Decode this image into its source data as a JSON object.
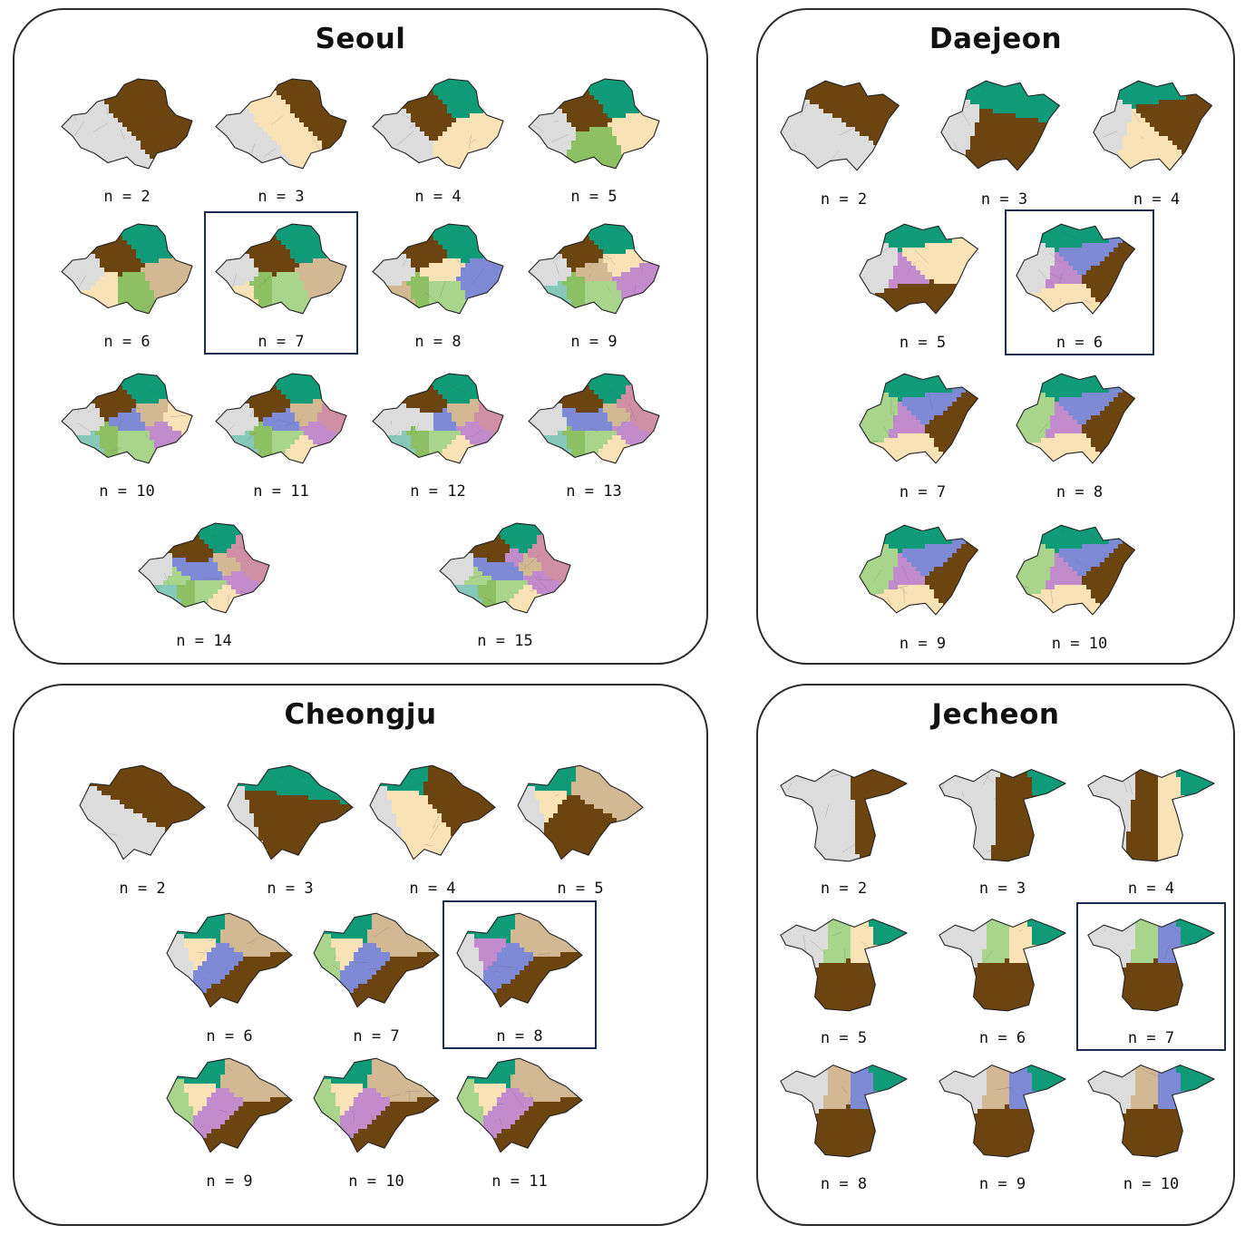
{
  "colors": {
    "gray": "#dcdcdc",
    "brown": "#6b4410",
    "teal": "#0f9a78",
    "beige": "#f8e2b6",
    "tan": "#d2b994",
    "lightgreen": "#a8d48c",
    "green": "#8cc063",
    "blue": "#7f8ad6",
    "purple": "#c28ccc",
    "pink": "#cf8fa4",
    "aqua": "#86c9bb",
    "highlight": "#1c2d52"
  },
  "panels": [
    {
      "id": "seoul",
      "title": "Seoul",
      "maps": [
        {
          "label": "n = 2",
          "regions": [
            "gray",
            "brown"
          ]
        },
        {
          "label": "n = 3",
          "regions": [
            "gray",
            "brown",
            "beige"
          ]
        },
        {
          "label": "n = 4",
          "regions": [
            "gray",
            "teal",
            "brown",
            "beige"
          ]
        },
        {
          "label": "n = 5",
          "regions": [
            "gray",
            "teal",
            "brown",
            "beige",
            "green"
          ]
        },
        {
          "label": "n = 6",
          "regions": [
            "gray",
            "teal",
            "brown",
            "tan",
            "green",
            "beige"
          ]
        },
        {
          "label": "n = 7",
          "highlight": true,
          "regions": [
            "gray",
            "teal",
            "brown",
            "tan",
            "lightgreen",
            "green",
            "beige"
          ]
        },
        {
          "label": "n = 8",
          "regions": [
            "gray",
            "teal",
            "brown",
            "blue",
            "lightgreen",
            "green",
            "tan",
            "beige"
          ]
        },
        {
          "label": "n = 9",
          "regions": [
            "gray",
            "teal",
            "brown",
            "purple",
            "lightgreen",
            "green",
            "aqua",
            "tan",
            "beige"
          ]
        },
        {
          "label": "n = 10",
          "regions": [
            "gray",
            "teal",
            "brown",
            "purple",
            "lightgreen",
            "green",
            "aqua",
            "blue",
            "tan",
            "beige"
          ]
        },
        {
          "label": "n = 11",
          "regions": [
            "gray",
            "teal",
            "brown",
            "purple",
            "lightgreen",
            "green",
            "aqua",
            "blue",
            "tan",
            "pink",
            "beige"
          ]
        },
        {
          "label": "n = 12",
          "regions": [
            "gray",
            "teal",
            "brown",
            "purple",
            "lightgreen",
            "green",
            "aqua",
            "blue",
            "tan",
            "pink",
            "beige",
            "gray"
          ]
        },
        {
          "label": "n = 13",
          "regions": [
            "gray",
            "teal",
            "brown",
            "purple",
            "lightgreen",
            "green",
            "aqua",
            "blue",
            "tan",
            "pink",
            "beige",
            "blue",
            "pink"
          ]
        },
        {
          "label": "n = 14",
          "regions": [
            "gray",
            "teal",
            "brown",
            "purple",
            "lightgreen",
            "green",
            "aqua",
            "blue",
            "tan",
            "pink",
            "beige",
            "blue",
            "pink",
            "lightgreen"
          ]
        },
        {
          "label": "n = 15",
          "regions": [
            "gray",
            "teal",
            "brown",
            "purple",
            "lightgreen",
            "green",
            "aqua",
            "blue",
            "tan",
            "pink",
            "beige",
            "blue",
            "pink",
            "lightgreen",
            "purple"
          ]
        }
      ]
    },
    {
      "id": "daejeon",
      "title": "Daejeon",
      "maps": [
        {
          "label": "n = 2",
          "regions": [
            "gray",
            "brown"
          ]
        },
        {
          "label": "n = 3",
          "regions": [
            "gray",
            "teal",
            "brown"
          ]
        },
        {
          "label": "n = 4",
          "regions": [
            "gray",
            "teal",
            "beige",
            "brown"
          ]
        },
        {
          "label": "n = 5",
          "regions": [
            "gray",
            "teal",
            "purple",
            "beige",
            "brown"
          ]
        },
        {
          "label": "n = 6",
          "highlight": true,
          "regions": [
            "gray",
            "teal",
            "purple",
            "blue",
            "beige",
            "brown"
          ]
        },
        {
          "label": "n = 7",
          "regions": [
            "lightgreen",
            "teal",
            "purple",
            "blue",
            "beige",
            "brown"
          ]
        },
        {
          "label": "n = 8",
          "regions": [
            "lightgreen",
            "teal",
            "purple",
            "blue",
            "beige",
            "brown"
          ]
        },
        {
          "label": "n = 9",
          "regions": [
            "lightgreen",
            "teal",
            "purple",
            "blue",
            "beige",
            "brown"
          ]
        },
        {
          "label": "n = 10",
          "regions": [
            "lightgreen",
            "teal",
            "purple",
            "blue",
            "beige",
            "brown"
          ]
        }
      ]
    },
    {
      "id": "cheongju",
      "title": "Cheongju",
      "maps": [
        {
          "label": "n = 2",
          "regions": [
            "gray",
            "brown"
          ]
        },
        {
          "label": "n = 3",
          "regions": [
            "gray",
            "teal",
            "brown"
          ]
        },
        {
          "label": "n = 4",
          "regions": [
            "gray",
            "teal",
            "beige",
            "brown"
          ]
        },
        {
          "label": "n = 5",
          "regions": [
            "gray",
            "teal",
            "beige",
            "tan",
            "brown"
          ]
        },
        {
          "label": "n = 6",
          "regions": [
            "gray",
            "teal",
            "beige",
            "tan",
            "blue",
            "brown"
          ]
        },
        {
          "label": "n = 7",
          "regions": [
            "lightgreen",
            "teal",
            "beige",
            "tan",
            "blue",
            "brown"
          ]
        },
        {
          "label": "n = 8",
          "highlight": true,
          "regions": [
            "gray",
            "teal",
            "purple",
            "tan",
            "blue",
            "brown"
          ]
        },
        {
          "label": "n = 9",
          "regions": [
            "lightgreen",
            "teal",
            "beige",
            "tan",
            "purple",
            "brown"
          ]
        },
        {
          "label": "n = 10",
          "regions": [
            "lightgreen",
            "teal",
            "beige",
            "tan",
            "purple",
            "brown"
          ]
        },
        {
          "label": "n = 11",
          "regions": [
            "lightgreen",
            "teal",
            "beige",
            "tan",
            "purple",
            "brown"
          ]
        }
      ]
    },
    {
      "id": "jecheon",
      "title": "Jecheon",
      "maps": [
        {
          "label": "n = 2",
          "regions": [
            "gray",
            "brown"
          ]
        },
        {
          "label": "n = 3",
          "regions": [
            "gray",
            "teal",
            "brown"
          ]
        },
        {
          "label": "n = 4",
          "regions": [
            "gray",
            "teal",
            "beige",
            "brown"
          ]
        },
        {
          "label": "n = 5",
          "regions": [
            "gray",
            "teal",
            "beige",
            "lightgreen",
            "brown"
          ]
        },
        {
          "label": "n = 6",
          "regions": [
            "gray",
            "teal",
            "beige",
            "lightgreen",
            "brown"
          ]
        },
        {
          "label": "n = 7",
          "highlight": true,
          "regions": [
            "gray",
            "teal",
            "blue",
            "lightgreen",
            "brown"
          ]
        },
        {
          "label": "n = 8",
          "regions": [
            "gray",
            "teal",
            "blue",
            "tan",
            "brown"
          ]
        },
        {
          "label": "n = 9",
          "regions": [
            "gray",
            "teal",
            "blue",
            "tan",
            "brown"
          ]
        },
        {
          "label": "n = 10",
          "regions": [
            "gray",
            "teal",
            "blue",
            "tan",
            "brown"
          ]
        }
      ]
    }
  ]
}
